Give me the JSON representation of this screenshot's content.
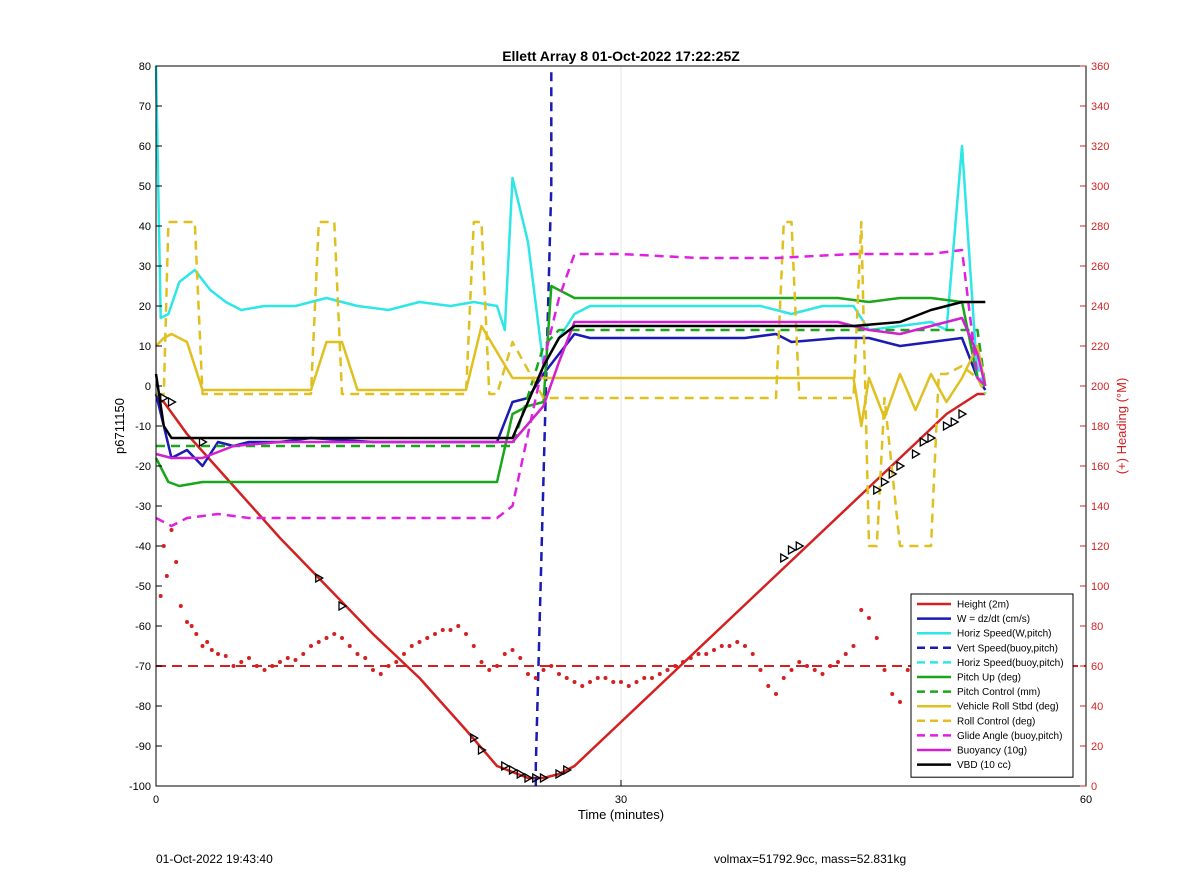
{
  "chart_data": {
    "type": "line",
    "title": "Ellett Array 8 01-Oct-2022 17:22:25Z",
    "xlabel": "Time (minutes)",
    "ylabel": "p6711150",
    "y2label": "(+) Heading (°M)",
    "xlim": [
      0,
      60
    ],
    "ylim": [
      -100,
      80
    ],
    "y2lim": [
      0,
      360
    ],
    "xticks": [
      "0",
      "30",
      "60"
    ],
    "yticks": [
      "-100",
      "-90",
      "-80",
      "-70",
      "-60",
      "-50",
      "-40",
      "-30",
      "-20",
      "-10",
      "0",
      "10",
      "20",
      "30",
      "40",
      "50",
      "60",
      "70",
      "80"
    ],
    "y2ticks": [
      "0",
      "20",
      "40",
      "60",
      "80",
      "100",
      "120",
      "140",
      "160",
      "180",
      "200",
      "220",
      "240",
      "260",
      "280",
      "300",
      "320",
      "340",
      "360"
    ],
    "grid": "x-only",
    "legend_position": "lower-right",
    "series": [
      {
        "name": "Height (2m)",
        "color": "#d42020",
        "style": "solid",
        "x": [
          0,
          0.5,
          2,
          5,
          8,
          11,
          14,
          17,
          20,
          22,
          24,
          25,
          26,
          27,
          30,
          33,
          36,
          39,
          42,
          45,
          48,
          51,
          53,
          53.5
        ],
        "y": [
          -3,
          -4,
          -12,
          -25,
          -38,
          -50,
          -62,
          -73,
          -86,
          -95,
          -98,
          -98,
          -97,
          -95,
          -84,
          -73,
          -62,
          -51,
          -40,
          -29,
          -18,
          -7,
          -2,
          -2
        ]
      },
      {
        "name": "W = dz/dt (cm/s)",
        "color": "#1a1ab4",
        "style": "solid",
        "x": [
          0,
          0.5,
          1,
          2,
          3,
          4,
          5,
          6,
          8,
          10,
          14,
          18,
          21,
          22,
          23,
          24,
          25,
          26,
          27,
          28,
          30,
          34,
          38,
          40,
          41,
          44,
          46,
          48,
          50,
          52,
          53,
          53.5
        ],
        "y": [
          -2,
          -10,
          -18,
          -16,
          -20,
          -14,
          -15,
          -14,
          -14,
          -13,
          -14,
          -14,
          -14,
          -14,
          -4,
          -3,
          3,
          8,
          13,
          12,
          12,
          12,
          12,
          13,
          11,
          12,
          12,
          10,
          11,
          12,
          2,
          -1
        ]
      },
      {
        "name": "Horiz Speed(W,pitch)",
        "color": "#2ee6e6",
        "style": "solid",
        "x": [
          0,
          0.3,
          0.8,
          1.5,
          2.5,
          3.5,
          4.5,
          5.5,
          7,
          9,
          11,
          13,
          15,
          17,
          19,
          20.5,
          22,
          22.5,
          23,
          24,
          25,
          26,
          27,
          28,
          30,
          33,
          36,
          39,
          41,
          43,
          45,
          46,
          48,
          50,
          51,
          52,
          53,
          53.5
        ],
        "y": [
          80,
          17,
          18,
          26,
          29,
          24,
          21,
          19,
          20,
          20,
          22,
          20,
          19,
          21,
          20,
          21,
          20,
          14,
          52,
          36,
          5,
          12,
          18,
          20,
          20,
          20,
          20,
          20,
          18,
          20,
          20,
          14,
          15,
          16,
          14,
          60,
          2,
          1
        ]
      },
      {
        "name": "Vert Speed(buoy,pitch)",
        "color": "#1a1ab4",
        "style": "dashed",
        "x": [
          24.5,
          24.5,
          25.5,
          25.5
        ],
        "y": [
          -100,
          -95,
          50,
          80
        ]
      },
      {
        "name": "Horiz Speed(buoy,pitch)",
        "color": "#2ee6e6",
        "style": "dashed",
        "x": [
          52.5,
          53,
          53.5
        ],
        "y": [
          13,
          5,
          -2
        ]
      },
      {
        "name": "Pitch Up (deg)",
        "color": "#1aa61a",
        "style": "solid",
        "x": [
          0,
          0.8,
          1.5,
          3,
          6,
          10,
          14,
          18,
          22,
          23,
          24,
          25,
          25.5,
          27,
          30,
          35,
          40,
          44,
          46,
          48,
          50,
          52,
          53,
          53.5
        ],
        "y": [
          -18,
          -24,
          -25,
          -24,
          -24,
          -24,
          -24,
          -24,
          -24,
          -7,
          -5,
          -4,
          25,
          22,
          22,
          22,
          22,
          22,
          21,
          22,
          22,
          21,
          2,
          0
        ]
      },
      {
        "name": "Pitch Control (mm)",
        "color": "#1aa61a",
        "style": "dashed",
        "x": [
          0,
          1,
          22,
          23,
          25,
          26,
          27,
          53,
          53.5
        ],
        "y": [
          -15,
          -15,
          -15,
          -15,
          10,
          14,
          14,
          14,
          0
        ]
      },
      {
        "name": "Vehicle Roll Stbd (deg)",
        "color": "#e0c020",
        "style": "solid",
        "x": [
          0,
          0.5,
          1,
          2,
          3,
          5,
          10,
          11,
          12,
          13,
          14,
          16,
          18,
          20,
          21,
          23,
          25,
          27,
          30,
          35,
          40,
          41,
          42,
          44,
          45,
          45.5,
          46,
          47,
          48,
          49,
          50,
          51,
          52,
          53,
          53.5
        ],
        "y": [
          10,
          12,
          13,
          11,
          -1,
          -1,
          -1,
          11,
          11,
          -1,
          -1,
          -1,
          -1,
          -1,
          15,
          2,
          2,
          2,
          2,
          2,
          2,
          2,
          2,
          2,
          2,
          -10,
          2,
          -8,
          3,
          -6,
          3,
          -4,
          2,
          10,
          0
        ]
      },
      {
        "name": "Roll Control (deg)",
        "color": "#e0c020",
        "style": "dashed",
        "x": [
          0,
          0.5,
          0.8,
          1.5,
          2.5,
          3,
          4,
          10,
          10.5,
          11.5,
          12,
          20,
          20.5,
          21,
          21.5,
          22,
          23,
          25,
          26,
          27,
          40,
          40.5,
          41,
          41.5,
          42,
          45,
          45.5,
          46,
          46.5,
          47,
          48,
          48.5,
          50,
          50.5,
          51,
          52,
          53,
          53.5
        ],
        "y": [
          -2,
          -2,
          41,
          41,
          41,
          -2,
          -2,
          -2,
          41,
          41,
          -2,
          -2,
          41,
          41,
          -2,
          -2,
          11,
          -3,
          -3,
          -3,
          -3,
          41,
          41,
          -3,
          -3,
          -3,
          41,
          -40,
          -40,
          -3,
          -40,
          -40,
          -40,
          3,
          3,
          5,
          2,
          -2
        ]
      },
      {
        "name": "Glide Angle (buoy,pitch)",
        "color": "#e020e0",
        "style": "dashed",
        "x": [
          0,
          1,
          2,
          4,
          6,
          10,
          14,
          18,
          22,
          23,
          24,
          25,
          26,
          27,
          30,
          35,
          40,
          45,
          50,
          52,
          53,
          53.5
        ],
        "y": [
          -33,
          -35,
          -33,
          -32,
          -33,
          -33,
          -33,
          -33,
          -33,
          -30,
          -12,
          6,
          22,
          33,
          33,
          32,
          32,
          33,
          33,
          34,
          2,
          0
        ]
      },
      {
        "name": "Buoyancy (10g)",
        "color": "#d020d0",
        "style": "solid",
        "x": [
          0,
          1,
          2,
          3,
          5,
          8,
          12,
          16,
          20,
          22,
          23,
          25,
          26,
          27,
          30,
          35,
          40,
          42,
          44,
          46,
          48,
          50,
          52,
          53,
          53.5
        ],
        "y": [
          -17,
          -18,
          -18,
          -18,
          -15,
          -14,
          -14,
          -14,
          -14,
          -14,
          -14,
          -5,
          6,
          16,
          16,
          16,
          16,
          16,
          16,
          14,
          13,
          15,
          17,
          8,
          0
        ]
      },
      {
        "name": "VBD (10 cc)",
        "color": "#000000",
        "style": "solid",
        "x": [
          0,
          0.5,
          1,
          22,
          23,
          25,
          26,
          27,
          30,
          40,
          45,
          48,
          50,
          51,
          52,
          53.5
        ],
        "y": [
          3,
          -10,
          -13,
          -13,
          -13,
          5,
          12,
          15,
          15,
          15,
          15,
          16,
          19,
          20,
          21,
          21
        ]
      }
    ],
    "heading_series": {
      "color": "#d42020",
      "reference_line": 60,
      "x": [
        0.3,
        0.5,
        0.7,
        1,
        1.3,
        1.6,
        2,
        2.3,
        2.6,
        3,
        3.3,
        3.6,
        4,
        4.5,
        5,
        5.5,
        6,
        6.5,
        7,
        7.5,
        8,
        8.5,
        9,
        9.5,
        10,
        10.5,
        11,
        11.5,
        12,
        12.5,
        13,
        13.5,
        14,
        14.5,
        15,
        15.5,
        16,
        16.5,
        17,
        17.5,
        18,
        18.5,
        19,
        19.5,
        20,
        20.5,
        21,
        21.5,
        22,
        22.5,
        23,
        23.5,
        24,
        24.5,
        25,
        25.5,
        26,
        26.5,
        27,
        27.5,
        28,
        28.5,
        29,
        29.5,
        30,
        30.5,
        31,
        31.5,
        32,
        32.5,
        33,
        33.5,
        34,
        34.5,
        35,
        35.5,
        36,
        36.5,
        37,
        37.5,
        38,
        38.5,
        39,
        39.5,
        40,
        40.5,
        41,
        41.5,
        42,
        42.5,
        43,
        43.5,
        44,
        44.5,
        45,
        45.5,
        46,
        46.5,
        47,
        47.5,
        48,
        48.5,
        49,
        49.5,
        50,
        50.5,
        51,
        51.5,
        52,
        52.5,
        53
      ],
      "y": [
        95,
        120,
        105,
        128,
        112,
        90,
        82,
        80,
        76,
        70,
        72,
        68,
        66,
        65,
        60,
        62,
        64,
        60,
        58,
        60,
        62,
        64,
        63,
        66,
        70,
        72,
        74,
        76,
        74,
        70,
        66,
        64,
        58,
        56,
        60,
        62,
        66,
        70,
        72,
        74,
        76,
        78,
        78,
        80,
        76,
        70,
        62,
        58,
        60,
        66,
        68,
        64,
        56,
        54,
        58,
        60,
        56,
        54,
        52,
        50,
        52,
        54,
        54,
        52,
        52,
        50,
        52,
        54,
        54,
        56,
        58,
        60,
        62,
        64,
        66,
        66,
        68,
        70,
        70,
        72,
        70,
        66,
        58,
        50,
        46,
        54,
        58,
        62,
        60,
        58,
        56,
        60,
        62,
        66,
        70,
        88,
        84,
        74,
        58,
        46,
        42,
        58,
        64,
        74,
        70,
        66,
        72,
        68,
        70,
        58,
        64
      ]
    },
    "markers": {
      "x": [
        0.5,
        1,
        3,
        10.5,
        12,
        20.5,
        21,
        22.5,
        23,
        23.5,
        24,
        24.5,
        25,
        26,
        26.5,
        40.5,
        41,
        41.5,
        46.5,
        47,
        47.5,
        48,
        49,
        49.5,
        50,
        51,
        51.5,
        52
      ],
      "y": [
        -3,
        -4,
        -14,
        -48,
        -55,
        -88,
        -91,
        -95,
        -96,
        -97,
        -98,
        -98,
        -98,
        -97,
        -96,
        -43,
        -41,
        -40,
        -26,
        -24,
        -22,
        -20,
        -17,
        -14,
        -13,
        -10,
        -9,
        -7
      ]
    }
  },
  "footer": {
    "left": "01-Oct-2022 19:43:40",
    "right": "volmax=51792.9cc, mass=52.831kg"
  }
}
